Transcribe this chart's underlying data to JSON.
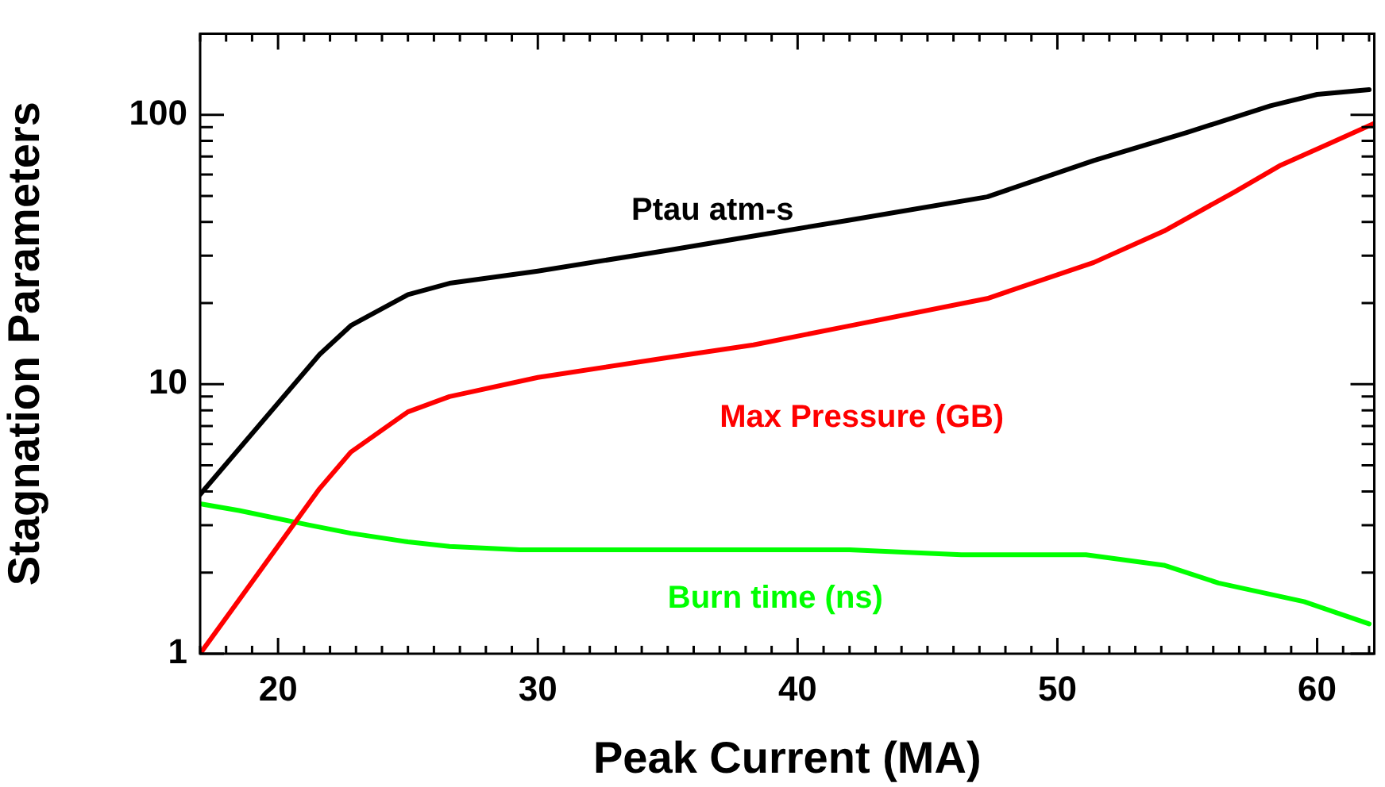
{
  "chart_data": {
    "type": "line",
    "xlabel": "Peak Current (MA)",
    "ylabel": "Stagnation Parameters",
    "log": "y",
    "grid": false,
    "legend": false,
    "marker": "none",
    "line_style": "solid",
    "xlim": [
      17,
      62.2
    ],
    "ylim": [
      1,
      200
    ],
    "xticks": [
      {
        "value": 17,
        "label": null
      },
      {
        "value": 18,
        "label": null
      },
      {
        "value": 19,
        "label": null
      },
      20,
      {
        "value": 21,
        "label": null
      },
      {
        "value": 22,
        "label": null
      },
      {
        "value": 23,
        "label": null
      },
      {
        "value": 24,
        "label": null
      },
      {
        "value": 25,
        "label": null
      },
      {
        "value": 26,
        "label": null
      },
      {
        "value": 27,
        "label": null
      },
      {
        "value": 28,
        "label": null
      },
      {
        "value": 29,
        "label": null
      },
      30,
      {
        "value": 31,
        "label": null
      },
      {
        "value": 32,
        "label": null
      },
      {
        "value": 33,
        "label": null
      },
      {
        "value": 34,
        "label": null
      },
      {
        "value": 35,
        "label": null
      },
      {
        "value": 36,
        "label": null
      },
      {
        "value": 37,
        "label": null
      },
      {
        "value": 38,
        "label": null
      },
      {
        "value": 39,
        "label": null
      },
      40,
      {
        "value": 41,
        "label": null
      },
      {
        "value": 42,
        "label": null
      },
      {
        "value": 43,
        "label": null
      },
      {
        "value": 44,
        "label": null
      },
      {
        "value": 45,
        "label": null
      },
      {
        "value": 46,
        "label": null
      },
      {
        "value": 47,
        "label": null
      },
      {
        "value": 48,
        "label": null
      },
      {
        "value": 49,
        "label": null
      },
      50,
      {
        "value": 51,
        "label": null
      },
      {
        "value": 52,
        "label": null
      },
      {
        "value": 53,
        "label": null
      },
      {
        "value": 54,
        "label": null
      },
      {
        "value": 55,
        "label": null
      },
      {
        "value": 56,
        "label": null
      },
      {
        "value": 57,
        "label": null
      },
      {
        "value": 58,
        "label": null
      },
      {
        "value": 59,
        "label": null
      },
      60,
      {
        "value": 61,
        "label": null
      },
      {
        "value": 62,
        "label": null
      }
    ],
    "yticks": [
      1,
      {
        "value": 2,
        "label": null
      },
      {
        "value": 3,
        "label": null
      },
      {
        "value": 4,
        "label": null
      },
      {
        "value": 5,
        "label": null
      },
      {
        "value": 6,
        "label": null
      },
      {
        "value": 7,
        "label": null
      },
      {
        "value": 8,
        "label": null
      },
      {
        "value": 9,
        "label": null
      },
      10,
      {
        "value": 20,
        "label": null
      },
      {
        "value": 30,
        "label": null
      },
      {
        "value": 40,
        "label": null
      },
      {
        "value": 50,
        "label": null
      },
      {
        "value": 60,
        "label": null
      },
      {
        "value": 70,
        "label": null
      },
      {
        "value": 80,
        "label": null
      },
      {
        "value": 90,
        "label": null
      },
      100,
      {
        "value": 200,
        "label": null
      }
    ],
    "series": [
      {
        "name": "Ptau atm-s",
        "color": "#000000",
        "x": [
          17,
          21.6,
          22.8,
          25,
          26.6,
          30,
          35.1,
          38.3,
          41.9,
          47.3,
          51.4,
          55,
          58.2,
          60,
          62
        ],
        "values": [
          3.9,
          12.9,
          16.5,
          21.5,
          23.7,
          26.3,
          31.5,
          35.5,
          40.5,
          49.6,
          67.6,
          86,
          108,
          119,
          124
        ]
      },
      {
        "name": "Max Pressure (GB)",
        "color": "#ff0000",
        "x": [
          17,
          21.6,
          22.8,
          25,
          26.6,
          30,
          35.1,
          38.3,
          41.9,
          47.3,
          51.4,
          54.1,
          56.8,
          58.6,
          60.4,
          62.2
        ],
        "values": [
          1,
          4.1,
          5.6,
          7.9,
          9,
          10.6,
          12.6,
          14,
          16.4,
          20.8,
          28.3,
          37,
          51.6,
          65,
          77.6,
          93
        ]
      },
      {
        "name": "Burn time (ns)",
        "color": "#00ff00",
        "x": [
          17,
          18.5,
          21.2,
          22.8,
          25,
          26.6,
          29.3,
          42,
          46.3,
          51.1,
          54.1,
          56.2,
          59.5,
          62
        ],
        "values": [
          3.6,
          3.4,
          3,
          2.8,
          2.6,
          2.5,
          2.43,
          2.43,
          2.33,
          2.33,
          2.13,
          1.83,
          1.56,
          1.29
        ]
      }
    ]
  }
}
